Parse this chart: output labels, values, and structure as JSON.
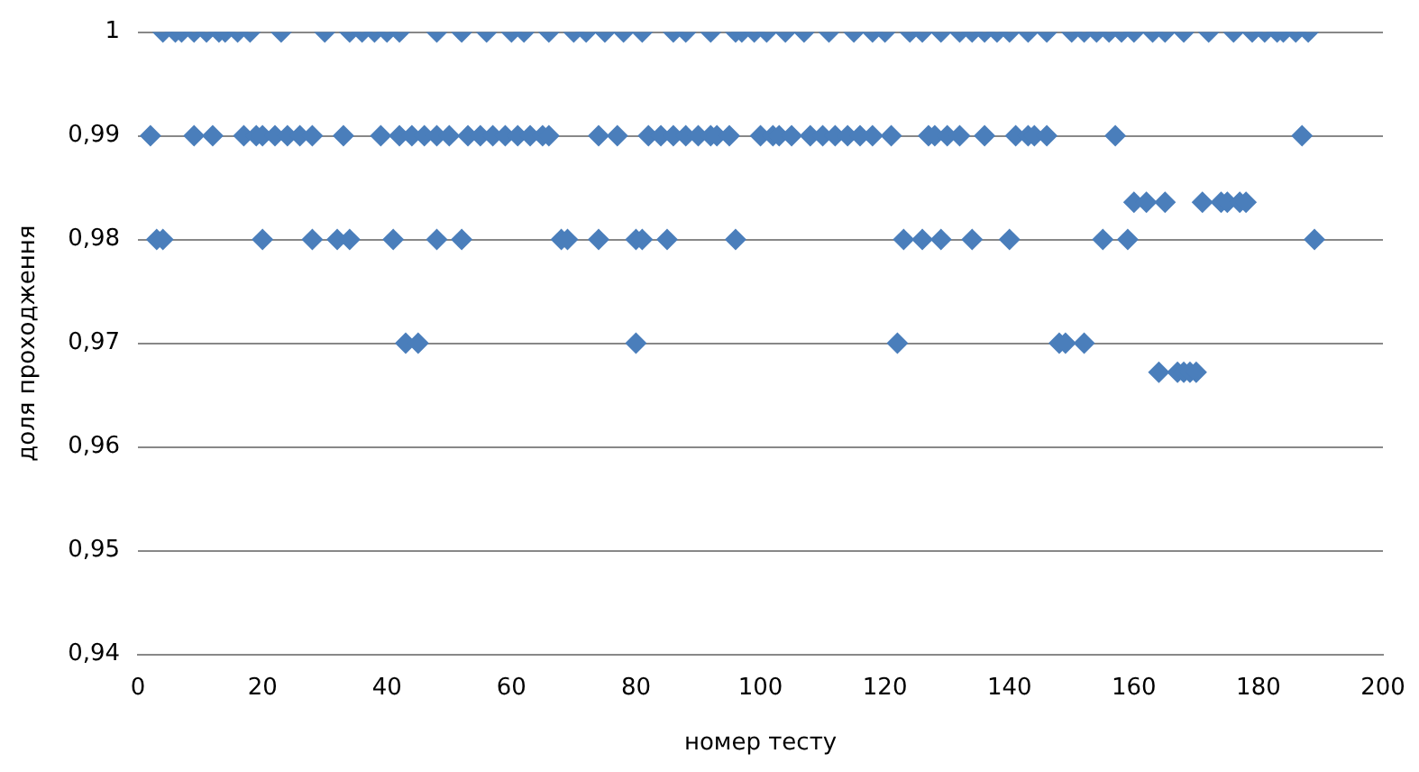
{
  "chart_data": {
    "type": "scatter",
    "xlabel": "номер тесту",
    "ylabel": "доля проходження",
    "xlim": [
      0,
      200
    ],
    "xticks": [
      0,
      20,
      40,
      60,
      80,
      100,
      120,
      140,
      160,
      180,
      200
    ],
    "ylim": [
      0.94,
      1
    ],
    "yticks": [
      {
        "value": 0.94,
        "label": "0,94"
      },
      {
        "value": 0.95,
        "label": "0,95"
      },
      {
        "value": 0.96,
        "label": "0,96"
      },
      {
        "value": 0.97,
        "label": "0,97"
      },
      {
        "value": 0.98,
        "label": "0,98"
      },
      {
        "value": 0.99,
        "label": "0,99"
      },
      {
        "value": 1,
        "label": "1"
      }
    ],
    "grid": "y",
    "legend": false,
    "marker": "diamond",
    "series": [
      {
        "color": "#4a7ebb",
        "x": [
          4,
          6,
          7,
          9,
          11,
          13,
          14,
          16,
          18,
          23,
          30,
          34,
          36,
          38,
          40,
          42,
          48,
          52,
          56,
          60,
          62,
          66,
          70,
          72,
          75,
          78,
          81,
          86,
          88,
          92,
          96,
          97,
          99,
          101,
          104,
          107,
          111,
          115,
          118,
          120,
          124,
          126,
          129,
          132,
          134,
          136,
          138,
          140,
          143,
          146,
          150,
          152,
          154,
          156,
          158,
          160,
          163,
          165,
          168,
          172,
          176,
          179,
          181,
          183,
          184,
          186,
          188,
          2,
          9,
          12,
          17,
          19,
          20,
          22,
          24,
          26,
          28,
          33,
          39,
          42,
          44,
          46,
          48,
          50,
          53,
          55,
          57,
          59,
          61,
          63,
          65,
          66,
          74,
          77,
          82,
          84,
          86,
          88,
          90,
          92,
          93,
          95,
          100,
          102,
          103,
          105,
          108,
          110,
          112,
          114,
          116,
          118,
          121,
          127,
          128,
          130,
          132,
          136,
          141,
          143,
          144,
          146,
          157,
          187,
          3,
          4,
          20,
          28,
          32,
          34,
          41,
          48,
          52,
          68,
          69,
          74,
          80,
          81,
          85,
          96,
          123,
          126,
          129,
          134,
          140,
          155,
          159,
          189,
          160,
          162,
          165,
          171,
          174,
          175,
          177,
          178,
          43,
          45,
          80,
          122,
          148,
          149,
          152,
          164,
          167,
          168,
          169,
          170
        ],
        "values": [
          1,
          1,
          1,
          1,
          1,
          1,
          1,
          1,
          1,
          1,
          1,
          1,
          1,
          1,
          1,
          1,
          1,
          1,
          1,
          1,
          1,
          1,
          1,
          1,
          1,
          1,
          1,
          1,
          1,
          1,
          1,
          1,
          1,
          1,
          1,
          1,
          1,
          1,
          1,
          1,
          1,
          1,
          1,
          1,
          1,
          1,
          1,
          1,
          1,
          1,
          1,
          1,
          1,
          1,
          1,
          1,
          1,
          1,
          1,
          1,
          1,
          1,
          1,
          1,
          1,
          1,
          1,
          0.99,
          0.99,
          0.99,
          0.99,
          0.99,
          0.99,
          0.99,
          0.99,
          0.99,
          0.99,
          0.99,
          0.99,
          0.99,
          0.99,
          0.99,
          0.99,
          0.99,
          0.99,
          0.99,
          0.99,
          0.99,
          0.99,
          0.99,
          0.99,
          0.99,
          0.99,
          0.99,
          0.99,
          0.99,
          0.99,
          0.99,
          0.99,
          0.99,
          0.99,
          0.99,
          0.99,
          0.99,
          0.99,
          0.99,
          0.99,
          0.99,
          0.99,
          0.99,
          0.99,
          0.99,
          0.99,
          0.99,
          0.99,
          0.99,
          0.99,
          0.99,
          0.99,
          0.99,
          0.99,
          0.99,
          0.99,
          0.99,
          0.98,
          0.98,
          0.98,
          0.98,
          0.98,
          0.98,
          0.98,
          0.98,
          0.98,
          0.98,
          0.98,
          0.98,
          0.98,
          0.98,
          0.98,
          0.98,
          0.98,
          0.98,
          0.98,
          0.98,
          0.98,
          0.98,
          0.98,
          0.98,
          0.9836,
          0.9836,
          0.9836,
          0.9836,
          0.9836,
          0.9836,
          0.9836,
          0.9836,
          0.97,
          0.97,
          0.97,
          0.97,
          0.97,
          0.97,
          0.97,
          0.9672,
          0.9672,
          0.9672,
          0.9672,
          0.9672
        ]
      }
    ]
  }
}
